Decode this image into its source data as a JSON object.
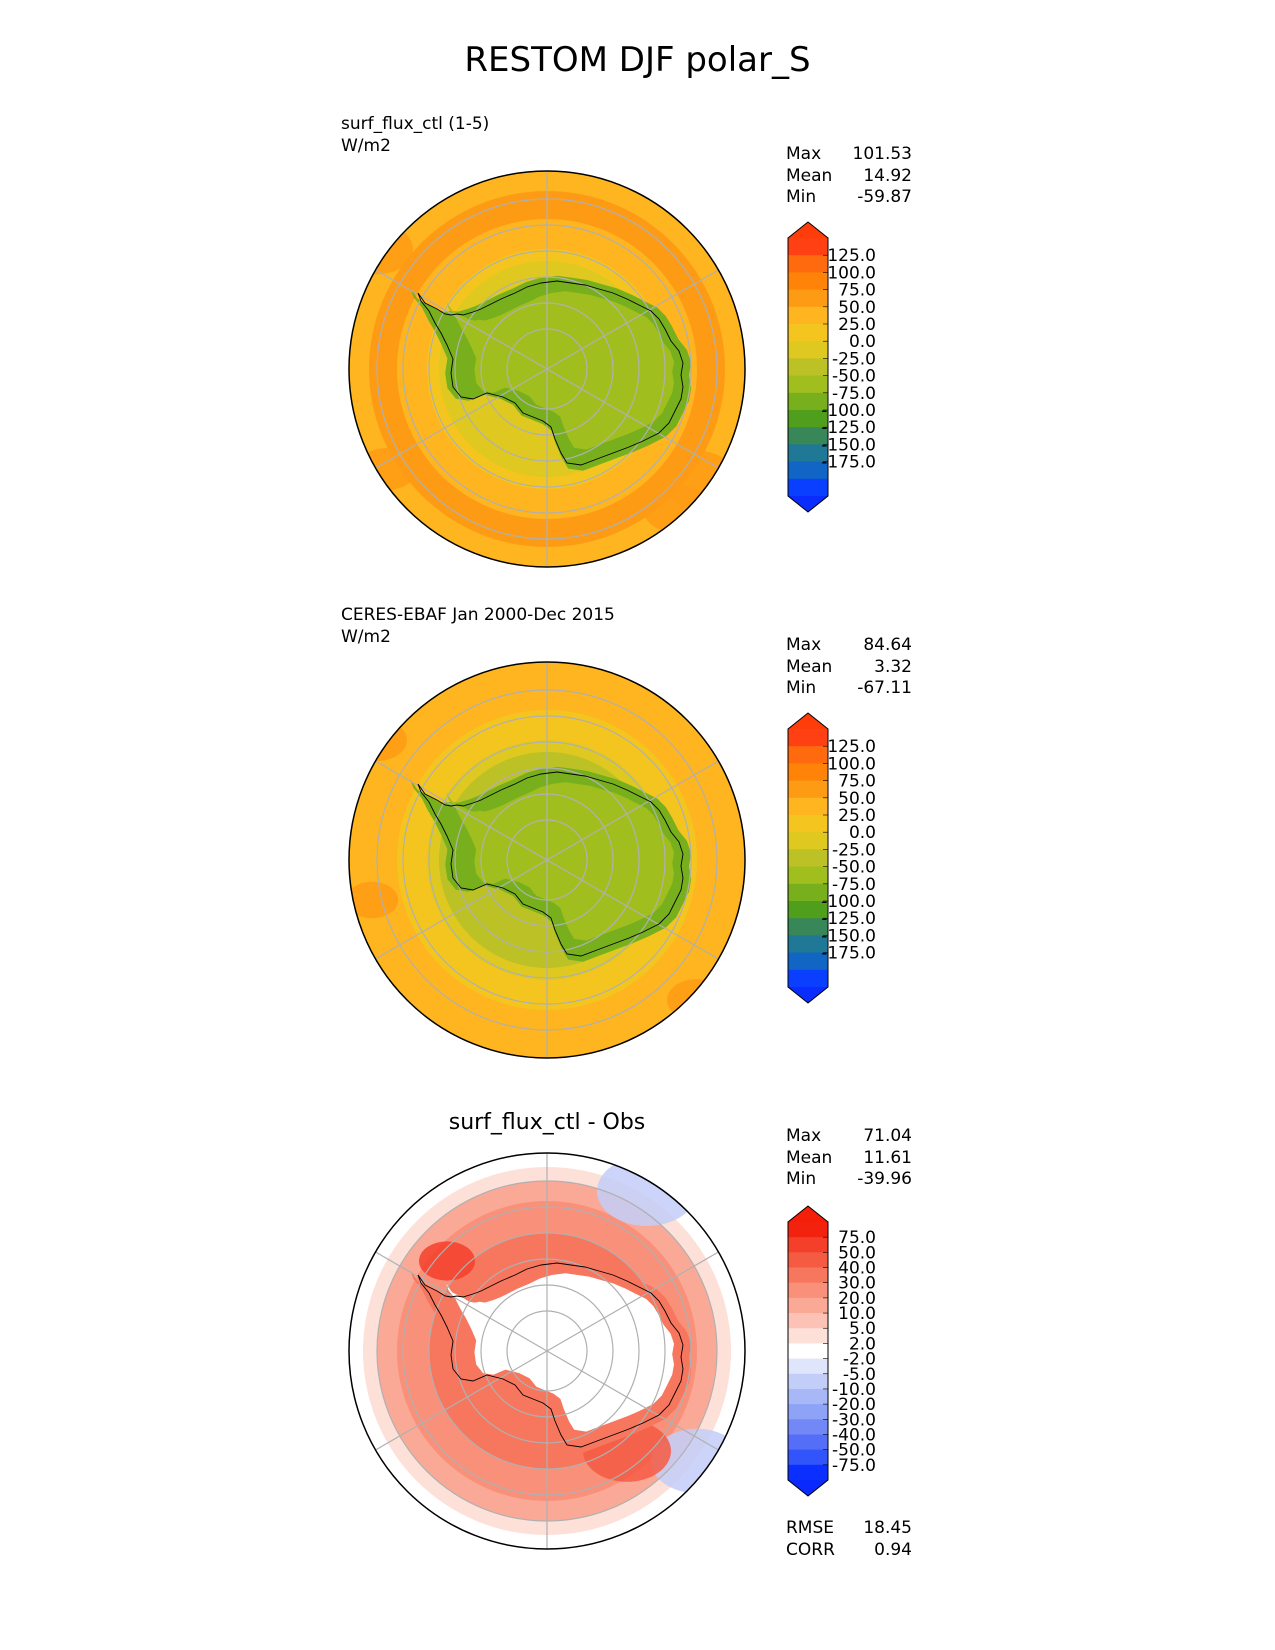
{
  "figure": {
    "title": "RESTOM DJF polar_S"
  },
  "panels": [
    {
      "id": "test",
      "title_lines": [
        "surf_flux_ctl (1-5)",
        "W/m2"
      ],
      "center_title": "",
      "stats": [
        {
          "label": "Max",
          "value": "101.53"
        },
        {
          "label": "Mean",
          "value": "14.92"
        },
        {
          "label": "Min",
          "value": "-59.87"
        }
      ],
      "colorbar": {
        "labels": [
          "125.0",
          "100.0",
          "75.0",
          "50.0",
          "25.0",
          "0.0",
          "-25.0",
          "-50.0",
          "-75.0",
          "-100.0",
          "-125.0",
          "-150.0",
          "-175.0"
        ],
        "colors": [
          "#ff4013",
          "#ff6a0e",
          "#ff8209",
          "#fe9b15",
          "#feb51f",
          "#f5c51f",
          "#dfc81f",
          "#bcc225",
          "#a0bf1e",
          "#78b01d",
          "#4f9f1d",
          "#388759",
          "#1f7896",
          "#1165c5",
          "#0a3fff"
        ],
        "over_color": "#ff3d0a",
        "under_color": "#0b2cff"
      }
    },
    {
      "id": "reference",
      "title_lines": [
        "CERES-EBAF Jan 2000-Dec 2015",
        "W/m2"
      ],
      "center_title": "",
      "stats": [
        {
          "label": "Max",
          "value": "84.64"
        },
        {
          "label": "Mean",
          "value": "3.32"
        },
        {
          "label": "Min",
          "value": "-67.11"
        }
      ],
      "colorbar": {
        "labels": [
          "125.0",
          "100.0",
          "75.0",
          "50.0",
          "25.0",
          "0.0",
          "-25.0",
          "-50.0",
          "-75.0",
          "-100.0",
          "-125.0",
          "-150.0",
          "-175.0"
        ],
        "colors": [
          "#ff4013",
          "#ff6a0e",
          "#ff8209",
          "#fe9b15",
          "#feb51f",
          "#f5c51f",
          "#dfc81f",
          "#bcc225",
          "#a0bf1e",
          "#78b01d",
          "#4f9f1d",
          "#388759",
          "#1f7896",
          "#1165c5",
          "#0a3fff"
        ],
        "over_color": "#ff3d0a",
        "under_color": "#0b2cff"
      }
    },
    {
      "id": "difference",
      "title_lines": [],
      "center_title": "surf_flux_ctl - Obs",
      "stats": [
        {
          "label": "Max",
          "value": "71.04"
        },
        {
          "label": "Mean",
          "value": "11.61"
        },
        {
          "label": "Min",
          "value": "-39.96"
        }
      ],
      "metrics": [
        {
          "label": "RMSE",
          "value": "18.45"
        },
        {
          "label": "CORR",
          "value": "0.94"
        }
      ],
      "colorbar": {
        "labels": [
          "75.0",
          "50.0",
          "40.0",
          "30.0",
          "20.0",
          "10.0",
          "5.0",
          "2.0",
          "-2.0",
          "-5.0",
          "-10.0",
          "-20.0",
          "-30.0",
          "-40.0",
          "-50.0",
          "-75.0"
        ],
        "colors": [
          "#f3220f",
          "#f4402a",
          "#f55b43",
          "#f7765e",
          "#f9907a",
          "#fba997",
          "#fcc2b6",
          "#fde0d8",
          "#ffffff",
          "#dfe6fb",
          "#c3cef8",
          "#a8b8f7",
          "#8ea3f6",
          "#7288f6",
          "#546ef8",
          "#3154fb",
          "#0a2ffe"
        ],
        "over_color": "#f51e09",
        "under_color": "#0a2afd"
      }
    }
  ],
  "chart_data": [
    {
      "type": "heatmap",
      "title": "surf_flux_ctl (1-5)",
      "units": "W/m2",
      "projection": "south polar stereographic",
      "levels": [
        -175,
        -150,
        -125,
        -100,
        -75,
        -50,
        -25,
        0,
        25,
        50,
        75,
        100,
        125
      ],
      "stats": {
        "max": 101.53,
        "mean": 14.92,
        "min": -59.87
      },
      "field_regions": {
        "antarctic_interior": [
          -50,
          -25
        ],
        "antarctic_coast": [
          -75,
          -50
        ],
        "southern_ocean_inner": [
          0,
          25
        ],
        "southern_ocean_mid": [
          25,
          50
        ],
        "southern_ocean_outer": [
          50,
          75
        ]
      }
    },
    {
      "type": "heatmap",
      "title": "CERES-EBAF Jan 2000-Dec 2015",
      "units": "W/m2",
      "projection": "south polar stereographic",
      "levels": [
        -175,
        -150,
        -125,
        -100,
        -75,
        -50,
        -25,
        0,
        25,
        50,
        75,
        100,
        125
      ],
      "stats": {
        "max": 84.64,
        "mean": 3.32,
        "min": -67.11
      },
      "field_regions": {
        "antarctic_interior": [
          -50,
          -25
        ],
        "antarctic_coast": [
          -75,
          -50
        ],
        "southern_ocean_inner": [
          -25,
          0
        ],
        "southern_ocean_mid": [
          0,
          25
        ],
        "southern_ocean_outer": [
          25,
          50
        ]
      }
    },
    {
      "type": "heatmap",
      "title": "surf_flux_ctl - Obs",
      "projection": "south polar stereographic",
      "levels": [
        -75,
        -50,
        -40,
        -30,
        -20,
        -10,
        -5,
        -2,
        2,
        5,
        10,
        20,
        30,
        40,
        50,
        75
      ],
      "stats": {
        "max": 71.04,
        "mean": 11.61,
        "min": -39.96,
        "rmse": 18.45,
        "corr": 0.94
      },
      "field_regions": {
        "antarctic_interior": [
          -10,
          5
        ],
        "antarctic_coast": [
          20,
          40
        ],
        "southern_ocean_inner": [
          10,
          30
        ],
        "southern_ocean_outer": [
          -10,
          5
        ]
      }
    }
  ]
}
